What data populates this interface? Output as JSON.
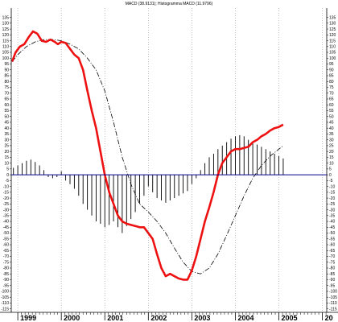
{
  "chart_data": {
    "type": "line",
    "title": "MACD (38.9131); Histogramma MACD (11.9796)",
    "y_ticks": [
      135,
      130,
      125,
      120,
      115,
      110,
      105,
      100,
      95,
      90,
      85,
      80,
      75,
      70,
      65,
      60,
      55,
      50,
      45,
      40,
      35,
      30,
      25,
      20,
      15,
      10,
      5,
      0,
      -5,
      -10,
      -15,
      -20,
      -25,
      -30,
      -35,
      -40,
      -45,
      -50,
      -55,
      -60,
      -65,
      -70,
      -75,
      -80,
      -85,
      -90,
      -95,
      -100,
      -105,
      -110,
      -115
    ],
    "ylim": [
      -118,
      143
    ],
    "xlim": [
      1998.85,
      2006.1
    ],
    "x_year_labels": [
      "1999",
      "2000",
      "2001",
      "2002",
      "2003",
      "2004",
      "2005",
      "20"
    ],
    "x_year_positions": [
      1999,
      2000,
      2001,
      2002,
      2003,
      2004,
      2005,
      2006
    ],
    "grid": "vertical dotted",
    "zero_line_color": "#00008b",
    "series": [
      {
        "role": "macd",
        "color": "#ee1111",
        "style": "solid",
        "x": [
          1998.87,
          1998.95,
          1999.05,
          1999.15,
          1999.25,
          1999.35,
          1999.45,
          1999.55,
          1999.65,
          1999.75,
          1999.85,
          1999.92,
          2000.0,
          2000.1,
          2000.2,
          2000.3,
          2000.4,
          2000.5,
          2000.6,
          2000.7,
          2000.8,
          2000.9,
          2001.0,
          2001.1,
          2001.2,
          2001.3,
          2001.4,
          2001.5,
          2001.6,
          2001.7,
          2001.8,
          2001.9,
          2002.0,
          2002.1,
          2002.2,
          2002.3,
          2002.4,
          2002.5,
          2002.6,
          2002.7,
          2002.8,
          2002.9,
          2003.0,
          2003.1,
          2003.2,
          2003.3,
          2003.4,
          2003.5,
          2003.6,
          2003.7,
          2003.8,
          2003.9,
          2004.0,
          2004.1,
          2004.2,
          2004.3,
          2004.4,
          2004.5,
          2004.6,
          2004.7,
          2004.8,
          2004.9,
          2005.0,
          2005.1
        ],
        "y": [
          97,
          105,
          110,
          112,
          118,
          123,
          121,
          115,
          114,
          116,
          114,
          112,
          114,
          113,
          108,
          103,
          100,
          90,
          72,
          55,
          40,
          20,
          0,
          -15,
          -25,
          -35,
          -40,
          -42,
          -43,
          -44,
          -45,
          -45,
          -50,
          -55,
          -68,
          -80,
          -87,
          -85,
          -87,
          -89,
          -90,
          -90,
          -82,
          -70,
          -55,
          -40,
          -28,
          -15,
          0,
          10,
          15,
          20,
          22,
          22,
          23,
          24,
          28,
          30,
          33,
          35,
          38,
          40,
          41,
          43
        ],
        "x_note": "approximate time in years",
        "y_note": "approximate"
      },
      {
        "role": "signal",
        "color": "#000000",
        "style": "dashed",
        "x": [
          1998.87,
          1999.0,
          1999.2,
          1999.4,
          1999.6,
          1999.8,
          2000.0,
          2000.2,
          2000.4,
          2000.6,
          2000.8,
          2001.0,
          2001.2,
          2001.4,
          2001.6,
          2001.8,
          2002.0,
          2002.2,
          2002.4,
          2002.6,
          2002.8,
          2003.0,
          2003.2,
          2003.4,
          2003.6,
          2003.8,
          2004.0,
          2004.2,
          2004.4,
          2004.6,
          2004.8,
          2005.0,
          2005.1
        ],
        "y": [
          97,
          103,
          110,
          114,
          116,
          116,
          115,
          112,
          108,
          100,
          90,
          72,
          45,
          15,
          -8,
          -25,
          -32,
          -40,
          -50,
          -63,
          -75,
          -83,
          -85,
          -80,
          -68,
          -52,
          -35,
          -18,
          -3,
          8,
          16,
          22,
          25
        ]
      }
    ],
    "histogram": {
      "color": "#000000",
      "x": [
        1998.9,
        1999.0,
        1999.1,
        1999.2,
        1999.3,
        1999.4,
        1999.5,
        1999.6,
        1999.7,
        1999.8,
        1999.9,
        2000.0,
        2000.1,
        2000.2,
        2000.3,
        2000.4,
        2000.5,
        2000.6,
        2000.7,
        2000.8,
        2000.9,
        2001.0,
        2001.1,
        2001.2,
        2001.3,
        2001.4,
        2001.5,
        2001.6,
        2001.7,
        2001.8,
        2001.9,
        2002.0,
        2002.1,
        2002.2,
        2002.3,
        2002.4,
        2002.5,
        2002.6,
        2002.7,
        2002.8,
        2002.9,
        2003.0,
        2003.1,
        2003.2,
        2003.3,
        2003.4,
        2003.5,
        2003.6,
        2003.7,
        2003.8,
        2003.9,
        2004.0,
        2004.1,
        2004.2,
        2004.3,
        2004.4,
        2004.5,
        2004.6,
        2004.7,
        2004.8,
        2004.9,
        2005.0,
        2005.1
      ],
      "y": [
        6,
        8,
        10,
        12,
        13,
        11,
        8,
        4,
        -2,
        -3,
        -2,
        3,
        -5,
        -8,
        -12,
        -18,
        -25,
        -30,
        -35,
        -40,
        -42,
        -45,
        -43,
        -40,
        -45,
        -50,
        -44,
        -38,
        -32,
        -25,
        -18,
        -10,
        -15,
        -20,
        -22,
        -24,
        -22,
        -20,
        -18,
        -16,
        -14,
        -8,
        -3,
        4,
        10,
        15,
        18,
        22,
        25,
        28,
        31,
        33,
        34,
        33,
        30,
        28,
        26,
        24,
        22,
        20,
        18,
        16,
        14
      ]
    }
  }
}
